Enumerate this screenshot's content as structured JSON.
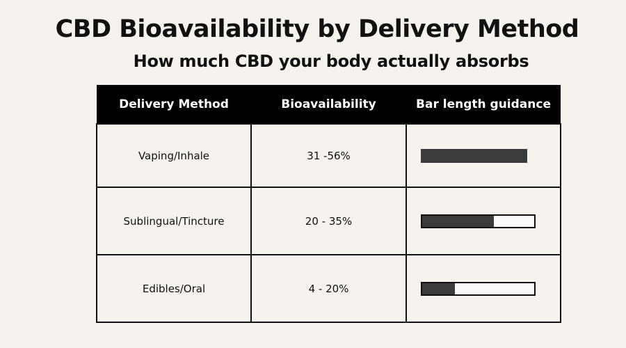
{
  "title": "CBD Bioavailability by Delivery Method",
  "subtitle": "How much CBD your body actually absorbs",
  "chart_data": {
    "type": "table",
    "columns": [
      "Delivery Method",
      "Bioavailability",
      "Bar length guidance"
    ],
    "rows": [
      {
        "method": "Vaping/Inhale",
        "bioavailability": "31 -56%",
        "bar_fill": 0.93,
        "outlined": false
      },
      {
        "method": "Sublingual/Tincture",
        "bioavailability": "20 - 35%",
        "bar_fill": 0.64,
        "outlined": true
      },
      {
        "method": "Edibles/Oral",
        "bioavailability": "4 - 20%",
        "bar_fill": 0.29,
        "outlined": true
      }
    ],
    "colors": {
      "header_bg": "#000000",
      "bar_fill": "#3b3b3b",
      "background": "#f6f2ee"
    }
  }
}
